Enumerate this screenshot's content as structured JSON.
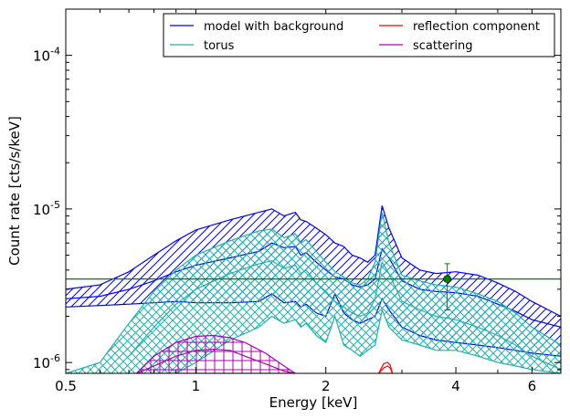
{
  "chart_data": {
    "type": "line",
    "title": "",
    "xlabel": "Energy [keV]",
    "ylabel": "Count rate [cts/s/keV]",
    "xscale": "log",
    "yscale": "log",
    "xlim": [
      0.5,
      7.0
    ],
    "ylim": [
      8.5e-07,
      0.0002
    ],
    "grid": false,
    "legend_position": "top-right",
    "x_ticks": [
      {
        "value": 0.5,
        "label": "0.5"
      },
      {
        "value": 1,
        "label": "1"
      },
      {
        "value": 2,
        "label": "2"
      },
      {
        "value": 4,
        "label": "4"
      },
      {
        "value": 6,
        "label": "6"
      }
    ],
    "y_ticks": [
      {
        "value": 1e-06,
        "base": "10",
        "exp": "-6"
      },
      {
        "value": 1e-05,
        "base": "10",
        "exp": "-5"
      },
      {
        "value": 0.0001,
        "base": "10",
        "exp": "-4"
      }
    ],
    "x": [
      0.5,
      0.6,
      0.7,
      0.8,
      0.9,
      1.0,
      1.2,
      1.4,
      1.5,
      1.6,
      1.7,
      1.75,
      1.8,
      1.9,
      2.0,
      2.1,
      2.2,
      2.3,
      2.4,
      2.5,
      2.6,
      2.7,
      2.8,
      3.0,
      3.3,
      3.6,
      4.0,
      4.5,
      5.0,
      5.5,
      6.0,
      7.0
    ],
    "series": [
      {
        "name": "model with background",
        "color": "#0000ff",
        "hatch": "diagonal",
        "upper": [
          3e-06,
          3.2e-06,
          3.9e-06,
          5e-06,
          6.2e-06,
          7.3e-06,
          8.5e-06,
          9.5e-06,
          1e-05,
          9e-06,
          9.5e-06,
          8.5e-06,
          8.3e-06,
          7.5e-06,
          6.8e-06,
          6e-06,
          5.7e-06,
          5e-06,
          4.8e-06,
          4.5e-06,
          5e-06,
          1.05e-05,
          7.5e-06,
          4.8e-06,
          4e-06,
          3.8e-06,
          3.9e-06,
          3.7e-06,
          3.3e-06,
          2.9e-06,
          2.5e-06,
          2e-06
        ],
        "median": [
          2.6e-06,
          2.7e-06,
          3e-06,
          3.4e-06,
          3.9e-06,
          4.3e-06,
          4.8e-06,
          5.3e-06,
          6e-06,
          5.6e-06,
          5.7e-06,
          5e-06,
          5.2e-06,
          4.5e-06,
          4e-06,
          3.6e-06,
          3.5e-06,
          3.2e-06,
          3.1e-06,
          3.2e-06,
          3.5e-06,
          5.5e-06,
          4.8e-06,
          3.4e-06,
          3e-06,
          2.9e-06,
          2.85e-06,
          2.7e-06,
          2.4e-06,
          2.15e-06,
          1.9e-06,
          1.7e-06
        ],
        "lower": [
          2.3e-06,
          2.35e-06,
          2.4e-06,
          2.45e-06,
          2.5e-06,
          2.45e-06,
          2.45e-06,
          2.5e-06,
          2.8e-06,
          2.45e-06,
          2.5e-06,
          2.3e-06,
          2.4e-06,
          2.1e-06,
          2e-06,
          2.8e-06,
          2.1e-06,
          1.9e-06,
          1.8e-06,
          1.9e-06,
          2e-06,
          2.6e-06,
          2.2e-06,
          1.7e-06,
          1.5e-06,
          1.4e-06,
          1.35e-06,
          1.3e-06,
          1.25e-06,
          1.2e-06,
          1.15e-06,
          1.1e-06
        ]
      },
      {
        "name": "torus",
        "color": "#20b2aa",
        "hatch": "cross",
        "x": [
          0.5,
          0.6,
          0.7,
          0.8,
          0.9,
          1.0,
          1.2,
          1.4,
          1.5,
          1.6,
          1.7,
          1.75,
          1.8,
          1.9,
          2.0,
          2.1,
          2.2,
          2.3,
          2.4,
          2.5,
          2.6,
          2.7,
          2.8,
          3.0,
          3.3,
          3.6,
          4.0,
          4.5,
          5.0,
          5.5,
          6.0,
          7.0
        ],
        "upper": [
          8.5e-07,
          1e-06,
          1.8e-06,
          2.9e-06,
          4e-06,
          5e-06,
          6.2e-06,
          7.2e-06,
          7.4e-06,
          6.5e-06,
          6.9e-06,
          6e-06,
          6.3e-06,
          5.3e-06,
          4.5e-06,
          3.9e-06,
          3.6e-06,
          3.3e-06,
          3.2e-06,
          3.5e-06,
          4.5e-06,
          9.5e-06,
          6e-06,
          3.7e-06,
          3.4e-06,
          3.2e-06,
          3.1e-06,
          2.8e-06,
          2.5e-06,
          2.1e-06,
          1.7e-06,
          1.3e-06
        ],
        "median": [
          null,
          null,
          1.1e-06,
          1.7e-06,
          2.4e-06,
          3e-06,
          3.8e-06,
          4.4e-06,
          4.6e-06,
          4.1e-06,
          4.3e-06,
          3.8e-06,
          4e-06,
          3.3e-06,
          2.9e-06,
          2.5e-06,
          2.3e-06,
          2.1e-06,
          2e-06,
          2.1e-06,
          2.6e-06,
          4.5e-06,
          3.8e-06,
          2.5e-06,
          2.2e-06,
          2e-06,
          1.9e-06,
          1.7e-06,
          1.5e-06,
          1.3e-06,
          1.1e-06,
          9e-07
        ],
        "lower": [
          null,
          null,
          null,
          null,
          8.5e-07,
          1e-06,
          1.4e-06,
          1.7e-06,
          2e-06,
          1.8e-06,
          1.9e-06,
          1.7e-06,
          1.8e-06,
          1.5e-06,
          1.35e-06,
          2e-06,
          1.3e-06,
          1.2e-06,
          1.1e-06,
          1.2e-06,
          1.3e-06,
          2.2e-06,
          1.7e-06,
          1.4e-06,
          1.3e-06,
          1.2e-06,
          1.2e-06,
          1.1e-06,
          1e-06,
          9.5e-07,
          9e-07,
          8.5e-07
        ]
      },
      {
        "name": "reflection component",
        "color": "#ff0000",
        "hatch": "none",
        "x": [
          2.65,
          2.72,
          2.78,
          2.82,
          2.85
        ],
        "upper": [
          8.5e-07,
          9.8e-07,
          1e-06,
          9.6e-07,
          8.5e-07
        ],
        "median": [
          8.5e-07,
          9.2e-07,
          9.5e-07,
          9.2e-07,
          8.5e-07
        ],
        "lower": [
          8.5e-07,
          8.5e-07,
          8.5e-07,
          8.5e-07,
          8.5e-07
        ]
      },
      {
        "name": "scattering",
        "color": "#b000b0",
        "hatch": "grid",
        "x": [
          0.73,
          0.8,
          0.9,
          1.0,
          1.1,
          1.2,
          1.3,
          1.45,
          1.6,
          1.7
        ],
        "upper": [
          8.5e-07,
          1.1e-06,
          1.35e-06,
          1.48e-06,
          1.5e-06,
          1.45e-06,
          1.35e-06,
          1.15e-06,
          9.5e-07,
          8.5e-07
        ],
        "median": [
          8.5e-07,
          9.5e-07,
          1.1e-06,
          1.2e-06,
          1.22e-06,
          1.2e-06,
          1.1e-06,
          9.8e-07,
          8.8e-07,
          8.5e-07
        ],
        "lower": [
          8.5e-07,
          8.5e-07,
          8.5e-07,
          8.5e-07,
          8.5e-07,
          8.5e-07,
          8.5e-07,
          8.5e-07,
          8.5e-07,
          8.5e-07
        ]
      }
    ],
    "background_level": {
      "y": 3.5e-06,
      "color": "#008000"
    },
    "data_points": [
      {
        "x": 3.82,
        "y": 3.5e-06,
        "yerr_low": 2.2e-06,
        "yerr_high": 4.4e-06,
        "color": "#008000"
      }
    ]
  }
}
